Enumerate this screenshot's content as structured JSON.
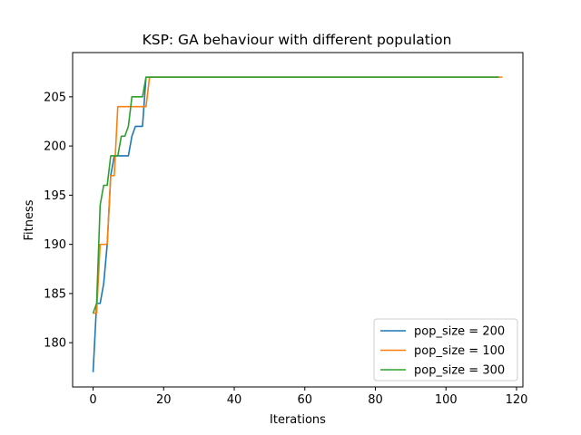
{
  "chart_data": {
    "type": "line",
    "title": "KSP: GA behaviour with different population",
    "xlabel": "Iterations",
    "ylabel": "Fitness",
    "xlim": [
      -5.8,
      121.8
    ],
    "ylim": [
      175.5,
      209.5
    ],
    "xticks": [
      0,
      20,
      40,
      60,
      80,
      100,
      120
    ],
    "yticks": [
      180,
      185,
      190,
      195,
      200,
      205
    ],
    "grid": false,
    "legend_position": "lower-right",
    "series": [
      {
        "name": "pop_size = 200",
        "color": "#1f77b4",
        "points": [
          [
            0,
            177
          ],
          [
            1,
            184
          ],
          [
            2,
            184
          ],
          [
            3,
            186
          ],
          [
            4,
            190
          ],
          [
            5,
            197
          ],
          [
            6,
            199
          ],
          [
            7,
            199
          ],
          [
            8,
            199
          ],
          [
            9,
            199
          ],
          [
            10,
            199
          ],
          [
            11,
            201
          ],
          [
            12,
            202
          ],
          [
            13,
            202
          ],
          [
            14,
            202
          ],
          [
            15,
            207
          ],
          [
            115,
            207
          ]
        ]
      },
      {
        "name": "pop_size = 100",
        "color": "#ff7f0e",
        "points": [
          [
            0,
            183
          ],
          [
            1,
            183
          ],
          [
            2,
            190
          ],
          [
            3,
            190
          ],
          [
            4,
            190
          ],
          [
            5,
            197
          ],
          [
            6,
            197
          ],
          [
            7,
            204
          ],
          [
            8,
            204
          ],
          [
            9,
            204
          ],
          [
            10,
            204
          ],
          [
            11,
            204
          ],
          [
            12,
            204
          ],
          [
            13,
            204
          ],
          [
            14,
            204
          ],
          [
            15,
            204
          ],
          [
            16,
            207
          ],
          [
            116,
            207
          ]
        ]
      },
      {
        "name": "pop_size = 300",
        "color": "#2ca02c",
        "points": [
          [
            0,
            183
          ],
          [
            1,
            184
          ],
          [
            2,
            194
          ],
          [
            3,
            196
          ],
          [
            4,
            196
          ],
          [
            5,
            199
          ],
          [
            6,
            199
          ],
          [
            7,
            199
          ],
          [
            8,
            201
          ],
          [
            9,
            201
          ],
          [
            10,
            202
          ],
          [
            11,
            205
          ],
          [
            12,
            205
          ],
          [
            13,
            205
          ],
          [
            14,
            205
          ],
          [
            15,
            207
          ],
          [
            115,
            207
          ]
        ]
      }
    ]
  }
}
